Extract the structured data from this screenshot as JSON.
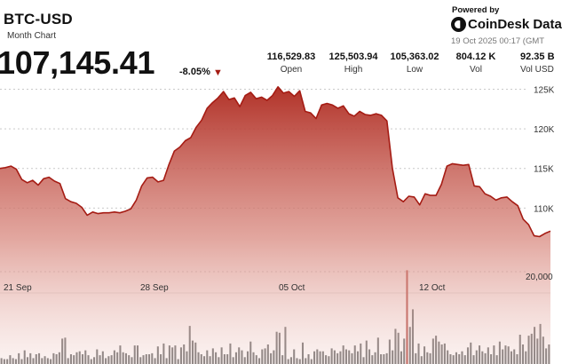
{
  "header": {
    "ticker": "BTC-USD",
    "subtitle": "Month Chart",
    "price": "107,145.41",
    "change": "-8.05%",
    "change_arrow": "▼"
  },
  "stats": [
    {
      "value": "116,529.83",
      "label": "Open"
    },
    {
      "value": "125,503.94",
      "label": "High"
    },
    {
      "value": "105,363.02",
      "label": "Low"
    },
    {
      "value": "804.12 K",
      "label": "Vol"
    },
    {
      "value": "92.35 B",
      "label": "Vol USD"
    }
  ],
  "branding": {
    "powered_by": "Powered by",
    "name": "CoinDesk Data",
    "timestamp": "19 Oct 2025 00:17 (GMT"
  },
  "colors": {
    "accent": "#a51c14",
    "area_top": "#b5372d",
    "volume_bar": "#5a5a5a",
    "volume_highlight": "#a52a22"
  },
  "chart_data": {
    "type": "area",
    "series": [
      {
        "values": [
          115000,
          115100,
          115300,
          114900,
          113600,
          113200,
          113500,
          112900,
          113700,
          113900,
          113400,
          113100,
          111200,
          110800,
          110600,
          110100,
          109100,
          109500,
          109300,
          109400,
          109400,
          109500,
          109400,
          109600,
          109900,
          111000,
          112800,
          113800,
          113900,
          113300,
          113500,
          115500,
          117200,
          117700,
          118500,
          118900,
          120200,
          121100,
          122600,
          123300,
          123900,
          124700,
          123700,
          123900,
          122800,
          124200,
          124600,
          123800,
          124000,
          123600,
          124200,
          125300,
          124500,
          124700,
          124100,
          124800,
          122200,
          122000,
          121300,
          123000,
          123200,
          123000,
          122600,
          122900,
          121900,
          121600,
          122200,
          121800,
          121700,
          121900,
          121700,
          121000,
          115000,
          111300,
          110800,
          111500,
          111400,
          110400,
          111800,
          111600,
          111600,
          113000,
          115300,
          115600,
          115500,
          115400,
          115500,
          112800,
          112700,
          111800,
          111500,
          111000,
          111300,
          111400,
          110800,
          110300,
          108600,
          107900,
          106500,
          106400,
          106800,
          107100
        ]
      }
    ],
    "volume": [
      6,
      5,
      5,
      9,
      6,
      5,
      11,
      5,
      14,
      7,
      11,
      6,
      10,
      11,
      6,
      8,
      6,
      5,
      11,
      10,
      12,
      26,
      27,
      6,
      10,
      9,
      12,
      13,
      10,
      14,
      9,
      5,
      7,
      15,
      9,
      13,
      6,
      8,
      9,
      14,
      12,
      19,
      12,
      11,
      9,
      7,
      19,
      19,
      7,
      9,
      10,
      10,
      11,
      6,
      18,
      10,
      21,
      6,
      19,
      17,
      19,
      5,
      17,
      20,
      13,
      39,
      24,
      22,
      12,
      10,
      8,
      14,
      8,
      16,
      12,
      7,
      17,
      10,
      10,
      21,
      7,
      12,
      17,
      14,
      7,
      13,
      23,
      12,
      9,
      6,
      15,
      16,
      20,
      11,
      14,
      33,
      32,
      9,
      38,
      5,
      7,
      15,
      6,
      5,
      22,
      6,
      10,
      5,
      13,
      15,
      13,
      13,
      9,
      8,
      16,
      14,
      11,
      13,
      19,
      15,
      14,
      11,
      19,
      13,
      21,
      7,
      24,
      15,
      9,
      12,
      27,
      10,
      10,
      11,
      25,
      14,
      36,
      32,
      13,
      26,
      96,
      38,
      56,
      11,
      21,
      8,
      18,
      12,
      11,
      26,
      29,
      23,
      20,
      21,
      14,
      10,
      9,
      12,
      10,
      13,
      9,
      17,
      22,
      9,
      14,
      19,
      13,
      11,
      17,
      10,
      19,
      9,
      23,
      15,
      19,
      18,
      13,
      15,
      10,
      30,
      20,
      13,
      29,
      31,
      38,
      26,
      41,
      28,
      16,
      20
    ],
    "volume_highlight_index": 140,
    "x_ticks": [
      "21 Sep",
      "28 Sep",
      "05 Oct",
      "12 Oct"
    ],
    "y_ticks": [
      "125K",
      "120K",
      "115K",
      "110K"
    ],
    "volume_tick": "20,000",
    "ylim": [
      105000,
      125500
    ],
    "grid": true
  }
}
